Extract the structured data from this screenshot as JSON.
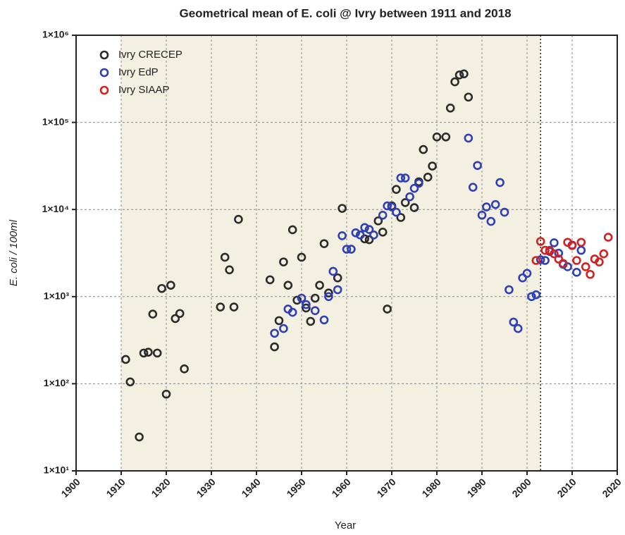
{
  "chart_data": {
    "type": "scatter",
    "title": "Geometrical mean of E. coli @ Ivry between 1911 and 2018",
    "x_label": "Year",
    "y_label": "E. coli / 100ml",
    "log_y": true,
    "grid": true,
    "legend": "upper left",
    "shaded_range": [
      1910,
      2003
    ],
    "xlim": [
      1900,
      2020
    ],
    "xticks": [
      1900,
      1910,
      1920,
      1930,
      1940,
      1950,
      1960,
      1970,
      1980,
      1990,
      2000,
      2010,
      2020
    ],
    "ylim": [
      10,
      1000000
    ],
    "yticks": [
      {
        "value": 10,
        "label": "1×10¹"
      },
      {
        "value": 100,
        "label": "1×10²"
      },
      {
        "value": 1000,
        "label": "1×10³"
      },
      {
        "value": 10000,
        "label": "1×10⁴"
      },
      {
        "value": 100000,
        "label": "1×10⁵"
      },
      {
        "value": 1000000,
        "label": "1×10⁶"
      }
    ],
    "series": [
      {
        "name": "Ivry CRECEP",
        "color": "#2b2b2b",
        "x": [
          1911,
          1912,
          1914,
          1915,
          1916,
          1917,
          1918,
          1919,
          1920,
          1921,
          1922,
          1923,
          1924,
          1932,
          1933,
          1934,
          1935,
          1936,
          1943,
          1944,
          1945,
          1946,
          1947,
          1948,
          1949,
          1950,
          1951,
          1952,
          1953,
          1954,
          1955,
          1956,
          1958,
          1959,
          1964,
          1965,
          1967,
          1968,
          1969,
          1970,
          1971,
          1972,
          1973,
          1975,
          1976,
          1977,
          1978,
          1979,
          1980,
          1982,
          1983,
          1984,
          1985,
          1986,
          1987
        ],
        "values": [
          190,
          105,
          24.5,
          225,
          230,
          630,
          225,
          1240,
          76,
          1350,
          560,
          640,
          148,
          760,
          2830,
          2030,
          760,
          7700,
          1560,
          265,
          530,
          2500,
          1350,
          5850,
          910,
          2830,
          740,
          520,
          960,
          1350,
          4050,
          1100,
          1640,
          10300,
          4600,
          4500,
          7400,
          5500,
          720,
          11000,
          17000,
          8100,
          12000,
          10500,
          20800,
          48800,
          23500,
          31500,
          68000,
          68000,
          146000,
          292000,
          350000,
          360000,
          195000
        ]
      },
      {
        "name": "Ivry EdP",
        "color": "#2f3fb5",
        "x": [
          1944,
          1946,
          1947,
          1948,
          1950,
          1951,
          1953,
          1955,
          1956,
          1957,
          1958,
          1959,
          1960,
          1961,
          1962,
          1963,
          1964,
          1965,
          1966,
          1968,
          1969,
          1970,
          1971,
          1972,
          1973,
          1974,
          1975,
          1976,
          1987,
          1988,
          1989,
          1990,
          1991,
          1992,
          1993,
          1994,
          1995,
          1996,
          1997,
          1998,
          1999,
          2000,
          2001,
          2002,
          2003,
          2004,
          2005,
          2006,
          2007,
          2008,
          2009,
          2010,
          2011,
          2012
        ],
        "values": [
          380,
          430,
          720,
          660,
          960,
          810,
          690,
          540,
          1000,
          1950,
          1200,
          5000,
          3500,
          3500,
          5400,
          5100,
          6200,
          5900,
          5100,
          8600,
          11000,
          10700,
          9300,
          23000,
          23000,
          14000,
          17500,
          20000,
          66000,
          18000,
          32000,
          8600,
          10700,
          7300,
          11400,
          20400,
          9300,
          1200,
          510,
          430,
          1640,
          1850,
          1000,
          1050,
          2650,
          2600,
          3300,
          4150,
          3150,
          2350,
          2200,
          3900,
          1900,
          3400
        ]
      },
      {
        "name": "Ivry SIAAP",
        "color": "#d42020",
        "x": [
          2002,
          2003,
          2004,
          2005,
          2006,
          2007,
          2008,
          2009,
          2010,
          2011,
          2012,
          2013,
          2014,
          2015,
          2016,
          2017,
          2018
        ],
        "values": [
          2600,
          4300,
          3400,
          3400,
          3100,
          2700,
          2400,
          4200,
          3850,
          2600,
          4200,
          2200,
          1800,
          2700,
          2500,
          3100,
          4800
        ]
      }
    ]
  }
}
